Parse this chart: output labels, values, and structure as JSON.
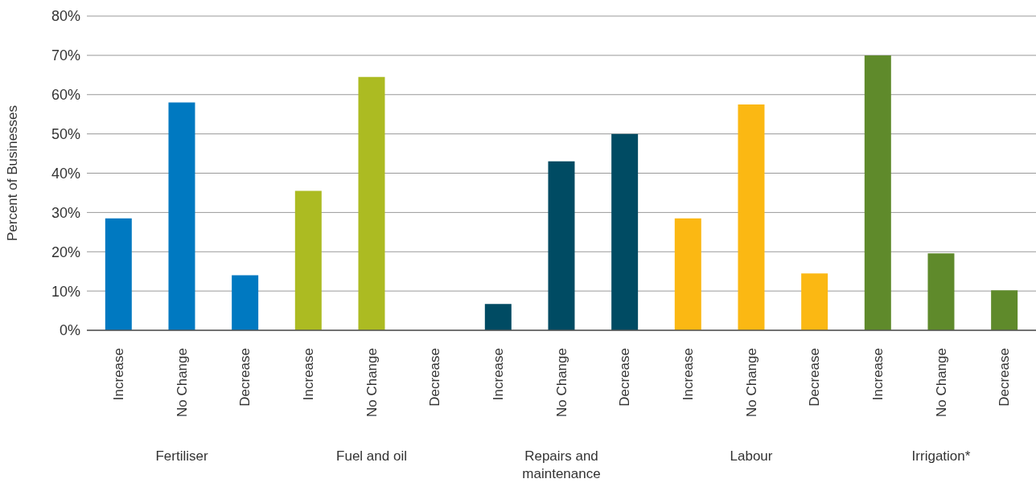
{
  "chart_data": {
    "type": "bar",
    "ylabel": "Percent of Businesses",
    "categories": [
      "Increase",
      "No Change",
      "Decrease",
      "Increase",
      "No Change",
      "Decrease",
      "Increase",
      "No Change",
      "Decrease",
      "Increase",
      "No Change",
      "Decrease",
      "Increase",
      "No Change",
      "Decrease"
    ],
    "values": [
      28.5,
      58,
      14,
      35.5,
      64.5,
      0,
      6.7,
      43,
      50,
      28.5,
      57.5,
      14.5,
      70,
      19.6,
      10.2
    ],
    "colors": [
      "#0079c1",
      "#0079c1",
      "#0079c1",
      "#acbb22",
      "#acbb22",
      "#acbb22",
      "#004b63",
      "#004b63",
      "#004b63",
      "#fbb813",
      "#fbb813",
      "#fbb813",
      "#5f8a2b",
      "#5f8a2b",
      "#5f8a2b"
    ],
    "annotations": [
      "Fertiliser",
      "Fuel and oil",
      "Repairs and maintenance",
      "Labour",
      "Irrigation*"
    ],
    "ylim": [
      0,
      80
    ],
    "yticks": [
      {
        "value": 0,
        "label": "0%"
      },
      {
        "value": 10,
        "label": "10%"
      },
      {
        "value": 20,
        "label": "20%"
      },
      {
        "value": 30,
        "label": "30%"
      },
      {
        "value": 40,
        "label": "40%"
      },
      {
        "value": 50,
        "label": "50%"
      },
      {
        "value": 60,
        "label": "60%"
      },
      {
        "value": 70,
        "label": "70%"
      },
      {
        "value": 80,
        "label": "80%"
      }
    ],
    "grid": "y"
  }
}
